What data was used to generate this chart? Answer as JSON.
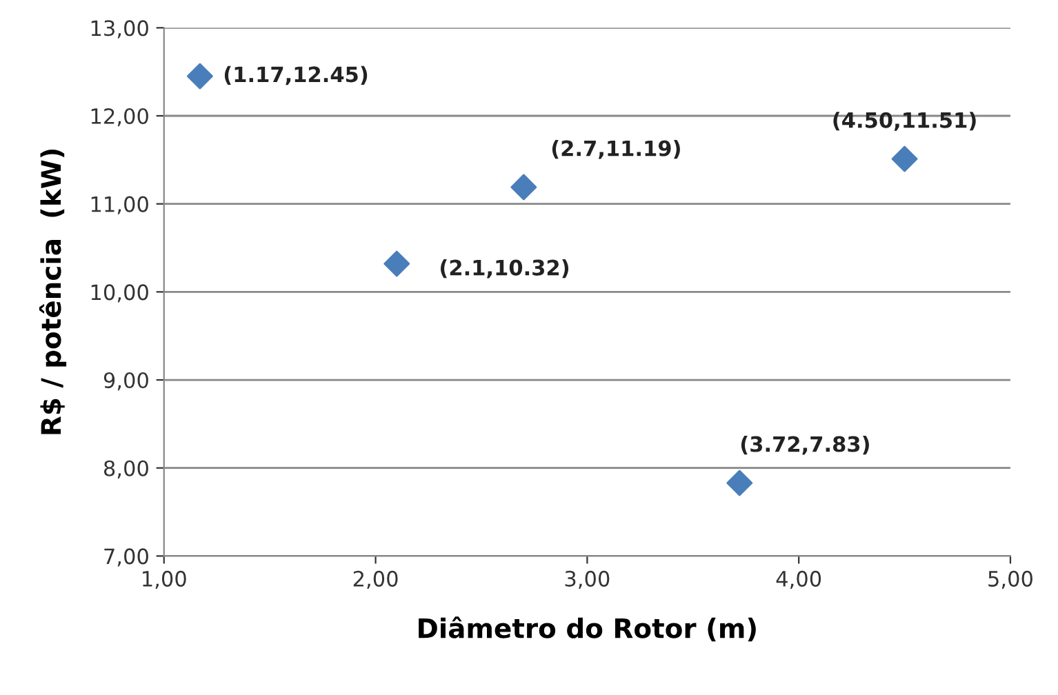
{
  "chart_data": {
    "type": "scatter",
    "xlabel": "Diâmetro do Rotor (m)",
    "ylabel": "R$ / potência  (kW)",
    "x": [
      1.17,
      2.1,
      2.7,
      3.72,
      4.5
    ],
    "series": [
      {
        "color": "#4a7ebb",
        "values": [
          12.45,
          10.32,
          11.19,
          7.83,
          11.51
        ]
      }
    ],
    "xlim": [
      1,
      5
    ],
    "ylim": [
      7,
      13
    ],
    "xticks": [
      {
        "value": 1,
        "label": "1,00"
      },
      {
        "value": 2,
        "label": "2,00"
      },
      {
        "value": 3,
        "label": "3,00"
      },
      {
        "value": 4,
        "label": "4,00"
      },
      {
        "value": 5,
        "label": "5,00"
      }
    ],
    "yticks": [
      {
        "value": 7,
        "label": "7,00"
      },
      {
        "value": 8,
        "label": "8,00"
      },
      {
        "value": 9,
        "label": "9,00"
      },
      {
        "value": 10,
        "label": "10,00"
      },
      {
        "value": 11,
        "label": "11,00"
      },
      {
        "value": 12,
        "label": "12,00"
      },
      {
        "value": 13,
        "label": "13,00"
      }
    ],
    "grid": "y",
    "marker": "diamond",
    "legend": false,
    "annotations": [
      {
        "text": "(1.17,12.45)",
        "x": 1.17,
        "y": 12.45
      },
      {
        "text": "(2.1,10.32)",
        "x": 2.1,
        "y": 10.32
      },
      {
        "text": "(2.7,11.19)",
        "x": 2.7,
        "y": 11.19
      },
      {
        "text": "(3.72,7.83)",
        "x": 3.72,
        "y": 7.83
      },
      {
        "text": "(4.50,11.51)",
        "x": 4.5,
        "y": 11.51
      }
    ]
  }
}
